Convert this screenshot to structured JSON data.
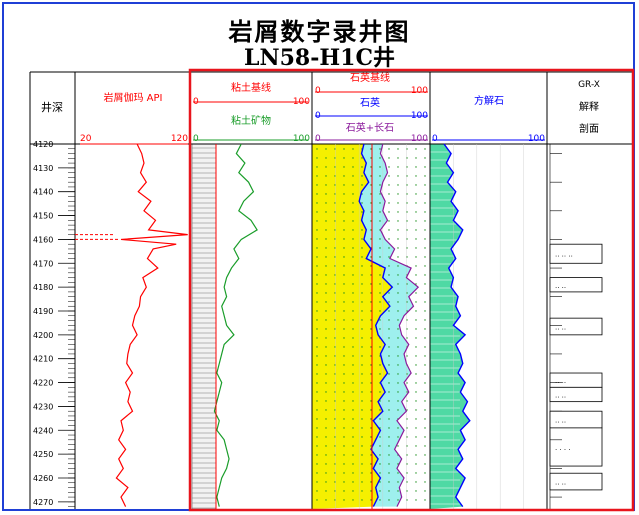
{
  "window": {
    "title_line1": "岩屑数字录井图",
    "title_line2": "LN58-H1C井"
  },
  "colors": {
    "frame": "#1f3fd6",
    "highlight_box": "#e8141c",
    "gamma": "#ff0000",
    "clay_fill": "#2db84a",
    "quartz_fill": "#f5f000",
    "sand_fill": "#9ef0ee",
    "calcite_fill": "#4fd9a4",
    "carbonate_line": "#0000ff",
    "feldspar_line": "#8b1a9c"
  },
  "headers": {
    "depth": "井深",
    "gamma": {
      "label": "岩屑伽玛 API",
      "scale_min": "20",
      "scale_max": "120"
    },
    "clay": {
      "baseline_label": "粘土基线",
      "baseline_min": "0",
      "baseline_max": "100",
      "mineral_label": "粘土矿物",
      "mineral_min": "0",
      "mineral_max": "100"
    },
    "quartz": {
      "baseline_label": "石英基线",
      "baseline_min": "0",
      "baseline_max": "100",
      "quartz_label": "石英",
      "quartz_min": "0",
      "quartz_max": "100",
      "qf_label": "石英+长石",
      "qf_min": "0",
      "qf_max": "100"
    },
    "calcite": {
      "label": "方解石",
      "min": "0",
      "max": "100"
    },
    "interp": {
      "line1": "GR-X",
      "line2": "解释",
      "line3": "剖面"
    }
  },
  "chart_data": {
    "type": "line",
    "title": "岩屑数字录井图 LN58-H1C井",
    "depth_ticks": [
      4120,
      4130,
      4140,
      4150,
      4160,
      4170,
      4180,
      4190,
      4200,
      4210,
      4220,
      4230,
      4240,
      4250,
      4260,
      4270
    ],
    "depth_range": [
      4120,
      4273
    ],
    "tracks": [
      {
        "name": "岩屑伽玛 API",
        "range": [
          20,
          120
        ],
        "color": "#ff0000",
        "depth": [
          4120,
          4124,
          4128,
          4132,
          4136,
          4140,
          4144,
          4148,
          4152,
          4156,
          4158,
          4160,
          4162,
          4164,
          4168,
          4172,
          4176,
          4180,
          4184,
          4188,
          4192,
          4196,
          4200,
          4204,
          4208,
          4212,
          4216,
          4220,
          4224,
          4228,
          4232,
          4236,
          4240,
          4244,
          4248,
          4252,
          4256,
          4260,
          4264,
          4268,
          4272
        ],
        "values": [
          74,
          78,
          80,
          77,
          82,
          75,
          86,
          80,
          90,
          84,
          118,
          60,
          108,
          88,
          83,
          92,
          79,
          82,
          77,
          76,
          72,
          70,
          74,
          68,
          66,
          65,
          70,
          64,
          68,
          66,
          70,
          60,
          62,
          58,
          64,
          58,
          62,
          56,
          66,
          60,
          64
        ]
      },
      {
        "name": "粘土矿物",
        "range": [
          0,
          100
        ],
        "color": "#1a9d2a",
        "depth": [
          4120,
          4124,
          4128,
          4132,
          4136,
          4140,
          4144,
          4148,
          4152,
          4156,
          4160,
          4164,
          4168,
          4172,
          4176,
          4180,
          4184,
          4188,
          4192,
          4196,
          4200,
          4204,
          4208,
          4212,
          4216,
          4220,
          4224,
          4228,
          4232,
          4236,
          4240,
          4244,
          4248,
          4252,
          4256,
          4260,
          4264,
          4268,
          4272
        ],
        "values": [
          42,
          38,
          45,
          40,
          48,
          52,
          44,
          40,
          50,
          55,
          42,
          36,
          40,
          34,
          30,
          28,
          30,
          26,
          28,
          30,
          36,
          28,
          26,
          24,
          22,
          26,
          24,
          22,
          20,
          24,
          22,
          28,
          30,
          32,
          30,
          26,
          24,
          22,
          24
        ]
      },
      {
        "name": "石英",
        "range": [
          0,
          100
        ],
        "color": "#0000ff",
        "depth": [
          4120,
          4124,
          4128,
          4132,
          4136,
          4140,
          4144,
          4148,
          4152,
          4156,
          4160,
          4164,
          4168,
          4172,
          4176,
          4180,
          4184,
          4188,
          4192,
          4196,
          4200,
          4204,
          4208,
          4212,
          4216,
          4220,
          4224,
          4228,
          4232,
          4236,
          4240,
          4244,
          4248,
          4252,
          4256,
          4260,
          4264,
          4268,
          4272
        ],
        "values": [
          44,
          42,
          46,
          44,
          48,
          42,
          40,
          44,
          42,
          46,
          44,
          50,
          46,
          62,
          60,
          68,
          60,
          66,
          58,
          54,
          56,
          62,
          58,
          60,
          64,
          58,
          62,
          56,
          60,
          52,
          58,
          54,
          50,
          56,
          52,
          58,
          54,
          56,
          52
        ]
      },
      {
        "name": "石英+长石",
        "range": [
          0,
          100
        ],
        "color": "#8b1a9c",
        "depth": [
          4120,
          4124,
          4128,
          4132,
          4136,
          4140,
          4144,
          4148,
          4152,
          4156,
          4160,
          4164,
          4168,
          4172,
          4176,
          4180,
          4184,
          4188,
          4192,
          4196,
          4200,
          4204,
          4208,
          4212,
          4216,
          4220,
          4224,
          4228,
          4232,
          4236,
          4240,
          4244,
          4248,
          4252,
          4256,
          4260,
          4264,
          4268,
          4272
        ],
        "values": [
          60,
          58,
          62,
          64,
          60,
          58,
          62,
          60,
          64,
          58,
          62,
          70,
          66,
          84,
          80,
          90,
          82,
          86,
          78,
          74,
          76,
          82,
          78,
          80,
          84,
          78,
          82,
          76,
          80,
          72,
          78,
          74,
          70,
          76,
          72,
          78,
          74,
          76,
          72
        ]
      },
      {
        "name": "方解石",
        "range": [
          0,
          100
        ],
        "color": "#0000ff",
        "depth": [
          4120,
          4124,
          4128,
          4132,
          4136,
          4140,
          4144,
          4148,
          4152,
          4156,
          4160,
          4164,
          4168,
          4172,
          4176,
          4180,
          4184,
          4188,
          4192,
          4196,
          4200,
          4204,
          4208,
          4212,
          4216,
          4220,
          4224,
          4228,
          4232,
          4236,
          4240,
          4244,
          4248,
          4252,
          4256,
          4260,
          4264,
          4268,
          4272
        ],
        "values": [
          12,
          18,
          14,
          20,
          15,
          22,
          18,
          24,
          20,
          28,
          24,
          18,
          22,
          16,
          20,
          18,
          24,
          22,
          26,
          20,
          30,
          22,
          26,
          28,
          24,
          30,
          26,
          32,
          28,
          34,
          26,
          30,
          24,
          28,
          22,
          30,
          26,
          22,
          28
        ]
      }
    ],
    "lithology_intervals": [
      {
        "top": 4162,
        "bottom": 4170,
        "label": ".. .. .."
      },
      {
        "top": 4176,
        "bottom": 4182,
        "label": ".. .."
      },
      {
        "top": 4193,
        "bottom": 4200,
        "label": ".. .."
      },
      {
        "top": 4216,
        "bottom": 4222,
        "label": ".. .."
      },
      {
        "top": 4222,
        "bottom": 4228,
        "label": ".. .."
      },
      {
        "top": 4232,
        "bottom": 4239,
        "label": ".. .."
      },
      {
        "top": 4239,
        "bottom": 4255,
        "label": ". . . ."
      },
      {
        "top": 4258,
        "bottom": 4265,
        "label": ".. .."
      }
    ]
  }
}
